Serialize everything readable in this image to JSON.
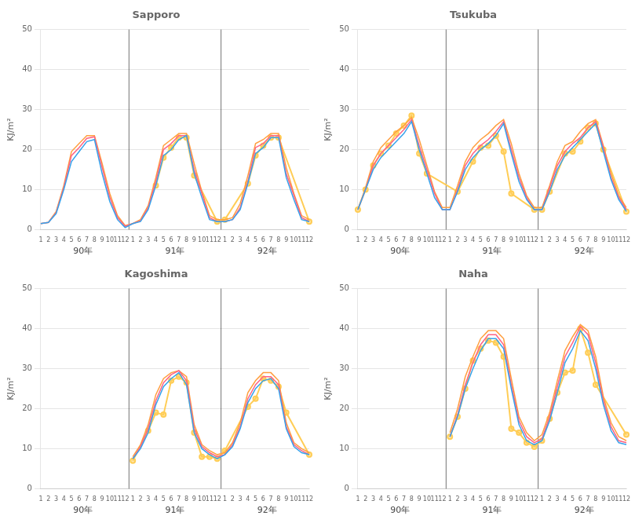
{
  "chart_data": [
    {
      "type": "line",
      "title": "Sapporo",
      "ylabel": "KJ/m²",
      "categories": [
        "1",
        "2",
        "3",
        "4",
        "5",
        "6",
        "7",
        "8",
        "9",
        "10",
        "11",
        "12",
        "1",
        "2",
        "3",
        "4",
        "5",
        "6",
        "7",
        "8",
        "9",
        "10",
        "11",
        "12",
        "1",
        "2",
        "3",
        "4",
        "5",
        "6",
        "7",
        "8",
        "9",
        "10",
        "11",
        "12"
      ],
      "annotations": [
        "90年",
        "91年",
        "92年"
      ],
      "series": [
        {
          "marker": "none",
          "values": [
            1.5,
            1.8,
            4.0,
            10.0,
            17.0,
            19.5,
            22.0,
            22.5,
            14.0,
            7.0,
            2.5,
            0.5,
            1.5,
            2.0,
            5.0,
            11.0,
            18.5,
            20.0,
            22.5,
            23.5,
            14.0,
            8.0,
            2.5,
            2.0,
            2.0,
            2.5,
            5.0,
            11.5,
            19.0,
            20.5,
            23.0,
            23.0,
            13.0,
            7.5,
            2.5,
            2.0
          ]
        },
        {
          "marker": "none",
          "values": [
            1.5,
            1.8,
            4.2,
            10.5,
            18.5,
            20.5,
            22.8,
            23.2,
            15.5,
            8.0,
            3.0,
            0.8,
            1.5,
            2.2,
            5.5,
            12.0,
            20.0,
            21.5,
            23.5,
            23.5,
            15.0,
            9.0,
            3.0,
            2.0,
            2.0,
            2.5,
            5.5,
            12.0,
            20.5,
            21.5,
            23.5,
            23.5,
            14.0,
            8.5,
            3.0,
            2.0
          ]
        },
        {
          "marker": "none",
          "values": [
            1.5,
            1.8,
            4.5,
            11.0,
            19.5,
            21.5,
            23.5,
            23.5,
            16.5,
            9.0,
            3.5,
            1.0,
            1.5,
            2.5,
            6.0,
            13.0,
            21.0,
            22.5,
            24.0,
            24.0,
            16.5,
            9.5,
            3.5,
            2.5,
            2.5,
            3.0,
            6.5,
            13.5,
            21.5,
            22.5,
            24.0,
            24.0,
            15.5,
            9.0,
            3.5,
            2.5
          ]
        },
        {
          "marker": "circle",
          "values": [
            null,
            null,
            null,
            null,
            null,
            null,
            null,
            null,
            null,
            null,
            null,
            null,
            null,
            null,
            null,
            11.0,
            18.0,
            20.5,
            23.0,
            23.0,
            13.5,
            null,
            null,
            2.0,
            2.5,
            null,
            null,
            11.5,
            18.5,
            21.0,
            23.0,
            23.0,
            null,
            null,
            null,
            2.0
          ]
        }
      ],
      "ylim": [
        0,
        50
      ],
      "yticks": [
        0,
        10,
        20,
        30,
        40,
        50
      ],
      "grid": true
    },
    {
      "type": "line",
      "title": "Tsukuba",
      "ylabel": "KJ/m²",
      "categories": [
        "1",
        "2",
        "3",
        "4",
        "5",
        "6",
        "7",
        "8",
        "9",
        "10",
        "11",
        "12",
        "1",
        "2",
        "3",
        "4",
        "5",
        "6",
        "7",
        "8",
        "9",
        "10",
        "11",
        "12",
        "1",
        "2",
        "3",
        "4",
        "5",
        "6",
        "7",
        "8",
        "9",
        "10",
        "11",
        "12"
      ],
      "annotations": [
        "90年",
        "91年",
        "92年"
      ],
      "series": [
        {
          "marker": "none",
          "values": [
            5.0,
            10.0,
            15.0,
            18.0,
            20.0,
            22.0,
            24.0,
            27.0,
            20.0,
            14.0,
            8.0,
            5.0,
            5.0,
            9.5,
            15.0,
            18.0,
            20.0,
            21.5,
            23.5,
            26.5,
            19.0,
            12.0,
            7.5,
            5.0,
            5.0,
            9.5,
            15.0,
            18.5,
            20.5,
            22.5,
            24.5,
            26.5,
            19.5,
            12.5,
            7.5,
            4.5
          ]
        },
        {
          "marker": "none",
          "values": [
            5.0,
            10.0,
            16.0,
            19.0,
            21.0,
            23.0,
            25.0,
            27.5,
            21.0,
            15.0,
            9.0,
            5.0,
            5.0,
            10.0,
            16.0,
            19.0,
            21.0,
            22.5,
            24.5,
            27.0,
            20.0,
            13.0,
            8.0,
            5.0,
            5.0,
            10.5,
            16.0,
            19.5,
            21.5,
            23.0,
            25.5,
            27.0,
            20.5,
            13.0,
            8.0,
            5.0
          ]
        },
        {
          "marker": "none",
          "values": [
            5.0,
            10.5,
            17.0,
            20.5,
            22.5,
            24.5,
            26.0,
            28.0,
            22.5,
            16.0,
            9.5,
            5.5,
            5.5,
            11.0,
            17.0,
            20.5,
            22.5,
            24.0,
            26.0,
            27.5,
            21.5,
            14.0,
            8.5,
            5.5,
            5.5,
            11.0,
            17.0,
            21.0,
            22.0,
            24.5,
            26.5,
            27.5,
            21.0,
            14.0,
            8.5,
            5.5
          ]
        },
        {
          "marker": "circle",
          "values": [
            5.0,
            10.0,
            16.0,
            19.0,
            21.0,
            24.0,
            26.0,
            28.5,
            19.0,
            14.0,
            null,
            null,
            null,
            9.5,
            null,
            17.0,
            20.5,
            21.0,
            23.5,
            19.5,
            9.0,
            null,
            null,
            5.0,
            5.0,
            9.5,
            null,
            19.0,
            19.5,
            22.0,
            25.5,
            26.5,
            20.0,
            null,
            null,
            4.5
          ]
        }
      ],
      "ylim": [
        0,
        50
      ],
      "yticks": [
        0,
        10,
        20,
        30,
        40,
        50
      ],
      "grid": true
    },
    {
      "type": "line",
      "title": "Kagoshima",
      "ylabel": "KJ/m²",
      "categories": [
        "1",
        "2",
        "3",
        "4",
        "5",
        "6",
        "7",
        "8",
        "9",
        "10",
        "11",
        "12",
        "1",
        "2",
        "3",
        "4",
        "5",
        "6",
        "7",
        "8",
        "9",
        "10",
        "11",
        "12",
        "1",
        "2",
        "3",
        "4",
        "5",
        "6",
        "7",
        "8",
        "9",
        "10",
        "11",
        "12"
      ],
      "annotations": [
        "90年",
        "91年",
        "92年"
      ],
      "series": [
        {
          "marker": "none",
          "values": [
            null,
            null,
            null,
            null,
            null,
            null,
            null,
            null,
            null,
            null,
            null,
            null,
            7.5,
            10.0,
            14.0,
            21.0,
            25.5,
            27.5,
            29.0,
            26.0,
            14.0,
            10.0,
            8.5,
            7.5,
            8.5,
            10.5,
            15.0,
            21.5,
            25.0,
            27.0,
            27.5,
            25.0,
            15.0,
            10.5,
            9.0,
            8.5
          ]
        },
        {
          "marker": "none",
          "values": [
            null,
            null,
            null,
            null,
            null,
            null,
            null,
            null,
            null,
            null,
            null,
            null,
            7.5,
            10.5,
            15.0,
            22.0,
            26.5,
            28.5,
            29.5,
            27.0,
            15.0,
            10.5,
            9.0,
            8.0,
            8.5,
            11.0,
            15.5,
            22.5,
            26.0,
            28.0,
            28.0,
            26.0,
            15.5,
            11.0,
            9.5,
            8.5
          ]
        },
        {
          "marker": "none",
          "values": [
            null,
            null,
            null,
            null,
            null,
            null,
            null,
            null,
            null,
            null,
            null,
            null,
            8.0,
            11.0,
            16.0,
            23.5,
            27.5,
            29.0,
            29.5,
            28.0,
            16.0,
            11.0,
            9.5,
            8.5,
            9.0,
            11.5,
            16.5,
            24.0,
            27.0,
            29.0,
            29.0,
            27.0,
            16.5,
            11.5,
            10.0,
            9.0
          ]
        },
        {
          "marker": "circle",
          "values": [
            null,
            null,
            null,
            null,
            null,
            null,
            null,
            null,
            null,
            null,
            null,
            null,
            7.0,
            null,
            14.5,
            19.0,
            18.5,
            27.0,
            28.0,
            26.5,
            14.0,
            8.0,
            8.0,
            7.5,
            9.5,
            null,
            null,
            20.5,
            22.5,
            27.5,
            27.0,
            25.5,
            19.0,
            null,
            null,
            8.5
          ]
        }
      ],
      "ylim": [
        0,
        50
      ],
      "yticks": [
        0,
        10,
        20,
        30,
        40,
        50
      ],
      "grid": true
    },
    {
      "type": "line",
      "title": "Naha",
      "ylabel": "KJ/m²",
      "categories": [
        "1",
        "2",
        "3",
        "4",
        "5",
        "6",
        "7",
        "8",
        "9",
        "10",
        "11",
        "12",
        "1",
        "2",
        "3",
        "4",
        "5",
        "6",
        "7",
        "8",
        "9",
        "10",
        "11",
        "12",
        "1",
        "2",
        "3",
        "4",
        "5",
        "6",
        "7",
        "8",
        "9",
        "10",
        "11",
        "12"
      ],
      "annotations": [
        "90年",
        "91年",
        "92年"
      ],
      "series": [
        {
          "marker": "none",
          "values": [
            null,
            null,
            null,
            null,
            null,
            null,
            null,
            null,
            null,
            null,
            null,
            null,
            13.0,
            18.0,
            25.0,
            30.0,
            34.5,
            37.5,
            37.5,
            35.0,
            25.0,
            16.0,
            12.0,
            11.0,
            12.0,
            17.0,
            24.0,
            31.5,
            35.0,
            39.5,
            37.0,
            30.0,
            21.0,
            14.5,
            11.5,
            11.0
          ]
        },
        {
          "marker": "none",
          "values": [
            null,
            null,
            null,
            null,
            null,
            null,
            null,
            null,
            null,
            null,
            null,
            null,
            13.0,
            18.5,
            26.0,
            31.5,
            36.0,
            38.5,
            38.5,
            36.0,
            26.0,
            17.0,
            13.0,
            11.5,
            12.5,
            18.0,
            25.5,
            33.0,
            36.5,
            40.5,
            38.5,
            31.5,
            22.0,
            15.5,
            12.0,
            11.5
          ]
        },
        {
          "marker": "none",
          "values": [
            null,
            null,
            null,
            null,
            null,
            null,
            null,
            null,
            null,
            null,
            null,
            null,
            14.0,
            20.0,
            28.0,
            33.0,
            37.5,
            39.5,
            39.5,
            37.5,
            27.5,
            18.0,
            14.0,
            12.0,
            13.5,
            19.0,
            27.0,
            34.5,
            38.0,
            41.0,
            39.5,
            33.0,
            23.0,
            16.5,
            13.0,
            12.0
          ]
        },
        {
          "marker": "circle",
          "values": [
            null,
            null,
            null,
            null,
            null,
            null,
            null,
            null,
            null,
            null,
            null,
            null,
            13.0,
            18.0,
            25.0,
            32.0,
            35.0,
            37.0,
            36.5,
            33.0,
            15.0,
            14.0,
            11.5,
            10.5,
            12.0,
            17.5,
            24.0,
            29.0,
            29.5,
            40.0,
            34.0,
            26.0,
            null,
            null,
            null,
            13.5
          ]
        }
      ],
      "ylim": [
        0,
        50
      ],
      "yticks": [
        0,
        10,
        20,
        30,
        40,
        50
      ],
      "grid": true
    }
  ]
}
